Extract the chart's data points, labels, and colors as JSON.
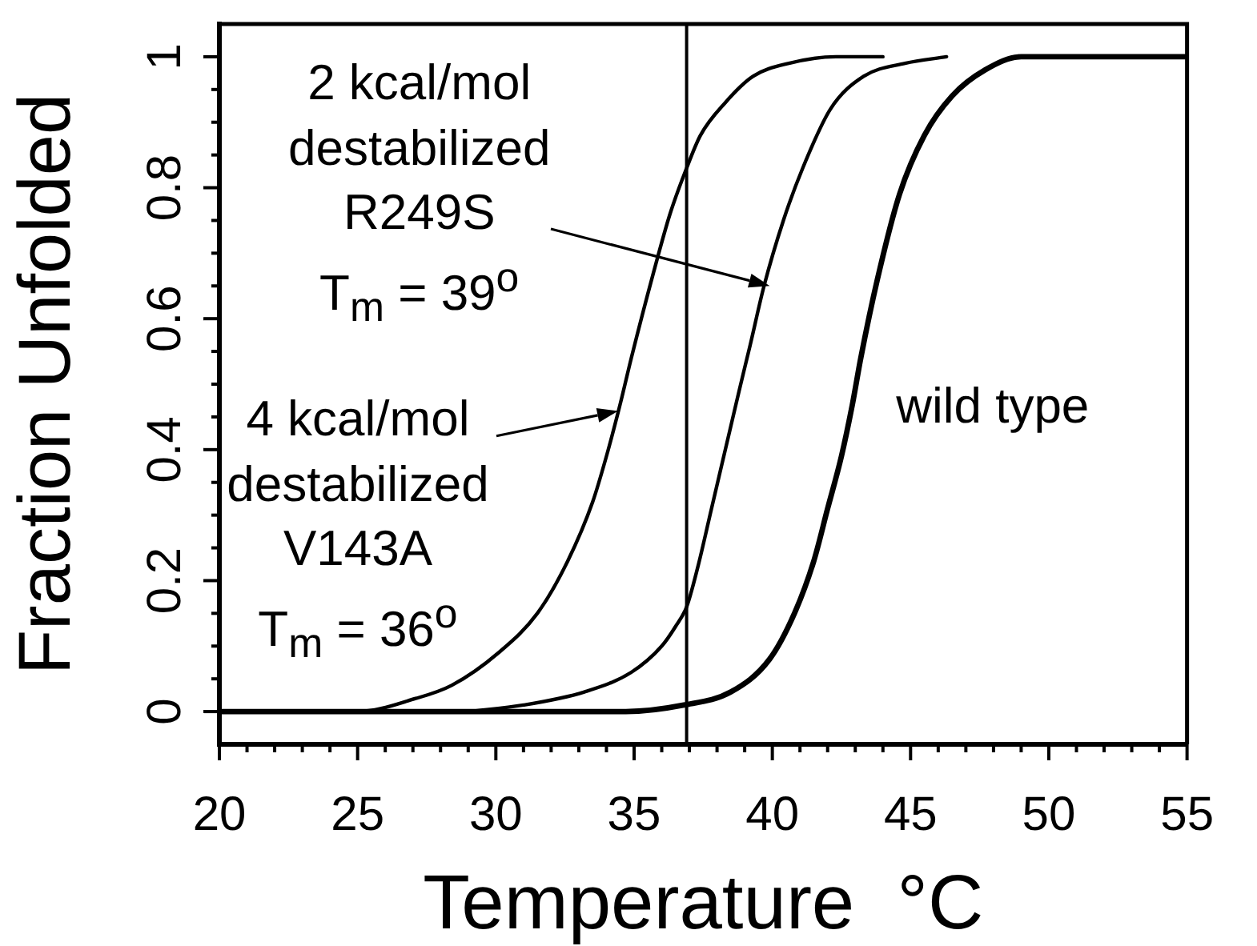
{
  "chart_data": {
    "type": "line",
    "xlabel": "Temperature  °C",
    "ylabel": "Fraction Unfolded",
    "xlim": [
      20,
      55
    ],
    "ylim": [
      -0.05,
      1.05
    ],
    "xticks": [
      20,
      {
        "value": 21,
        "label": null
      },
      {
        "value": 22,
        "label": null
      },
      {
        "value": 23,
        "label": null
      },
      {
        "value": 24,
        "label": null
      },
      25,
      {
        "value": 26,
        "label": null
      },
      {
        "value": 27,
        "label": null
      },
      {
        "value": 28,
        "label": null
      },
      {
        "value": 29,
        "label": null
      },
      30,
      {
        "value": 31,
        "label": null
      },
      {
        "value": 32,
        "label": null
      },
      {
        "value": 33,
        "label": null
      },
      {
        "value": 34,
        "label": null
      },
      35,
      {
        "value": 36,
        "label": null
      },
      {
        "value": 37,
        "label": null
      },
      {
        "value": 38,
        "label": null
      },
      {
        "value": 39,
        "label": null
      },
      40,
      {
        "value": 41,
        "label": null
      },
      {
        "value": 42,
        "label": null
      },
      {
        "value": 43,
        "label": null
      },
      {
        "value": 44,
        "label": null
      },
      45,
      {
        "value": 46,
        "label": null
      },
      {
        "value": 47,
        "label": null
      },
      {
        "value": 48,
        "label": null
      },
      {
        "value": 49,
        "label": null
      },
      50,
      {
        "value": 51,
        "label": null
      },
      {
        "value": 52,
        "label": null
      },
      {
        "value": 53,
        "label": null
      },
      {
        "value": 54,
        "label": null
      },
      55
    ],
    "yticks": [
      0,
      {
        "value": 0.05,
        "label": null
      },
      {
        "value": 0.1,
        "label": null
      },
      {
        "value": 0.15,
        "label": null
      },
      0.2,
      {
        "value": 0.25,
        "label": null
      },
      {
        "value": 0.3,
        "label": null
      },
      {
        "value": 0.35,
        "label": null
      },
      0.4,
      {
        "value": 0.45,
        "label": null
      },
      {
        "value": 0.5,
        "label": null
      },
      {
        "value": 0.55,
        "label": null
      },
      0.6,
      {
        "value": 0.65,
        "label": null
      },
      {
        "value": 0.7,
        "label": null
      },
      {
        "value": 0.75,
        "label": null
      },
      0.8,
      {
        "value": 0.85,
        "label": null
      },
      {
        "value": 0.9,
        "label": null
      },
      {
        "value": 0.95,
        "label": null
      },
      1
    ],
    "marker": "none",
    "ref_lines": [
      {
        "axis": "x",
        "value": 36.9
      }
    ],
    "annotations": [
      "2 kcal/mol\ndestabilized\nR249S\nT$_{m}$ = 39$^{o}$",
      {
        "text": "4 kcal/mol\ndestabilized\nV143A\nT$_{m}$ = 36$^{o}$",
        "x": 34.4,
        "y": 0.46
      }
    ],
    "series": [
      {
        "color": "#000000",
        "x": [
          23,
          25,
          27.1,
          28.4,
          30.1,
          31.5,
          32.6,
          33.5,
          34,
          34.5,
          34.9,
          35.7,
          36.3,
          36.9,
          37.4,
          38.3,
          39.3,
          40.6,
          42.3,
          44
        ],
        "values": [
          0,
          0,
          0.02,
          0.04,
          0.09,
          0.15,
          0.23,
          0.32,
          0.39,
          0.47,
          0.54,
          0.67,
          0.76,
          0.83,
          0.88,
          0.93,
          0.97,
          0.99,
          1,
          1
        ]
      },
      {
        "color": "#000000",
        "x": [
          29,
          31,
          33.2,
          34.9,
          36,
          36.5,
          36.9,
          37.3,
          37.8,
          38.3,
          38.8,
          39.2,
          39.7,
          40.4,
          41.1,
          42.1,
          43.3,
          44.8,
          46.3
        ],
        "values": [
          0,
          0.01,
          0.03,
          0.06,
          0.1,
          0.13,
          0.16,
          0.22,
          0.31,
          0.4,
          0.49,
          0.56,
          0.65,
          0.75,
          0.83,
          0.92,
          0.97,
          0.99,
          1
        ]
      },
      {
        "name": "wild type",
        "color": "#000000",
        "x": [
          20,
          34.7,
          36.8,
          38.5,
          39.9,
          40.8,
          41.5,
          42,
          42.5,
          42.9,
          43.2,
          43.8,
          44.6,
          45.5,
          46.5,
          47.7,
          49,
          55
        ],
        "values": [
          0,
          0,
          0.01,
          0.03,
          0.08,
          0.15,
          0.23,
          0.31,
          0.39,
          0.47,
          0.54,
          0.66,
          0.79,
          0.88,
          0.94,
          0.98,
          1,
          1
        ]
      }
    ]
  }
}
